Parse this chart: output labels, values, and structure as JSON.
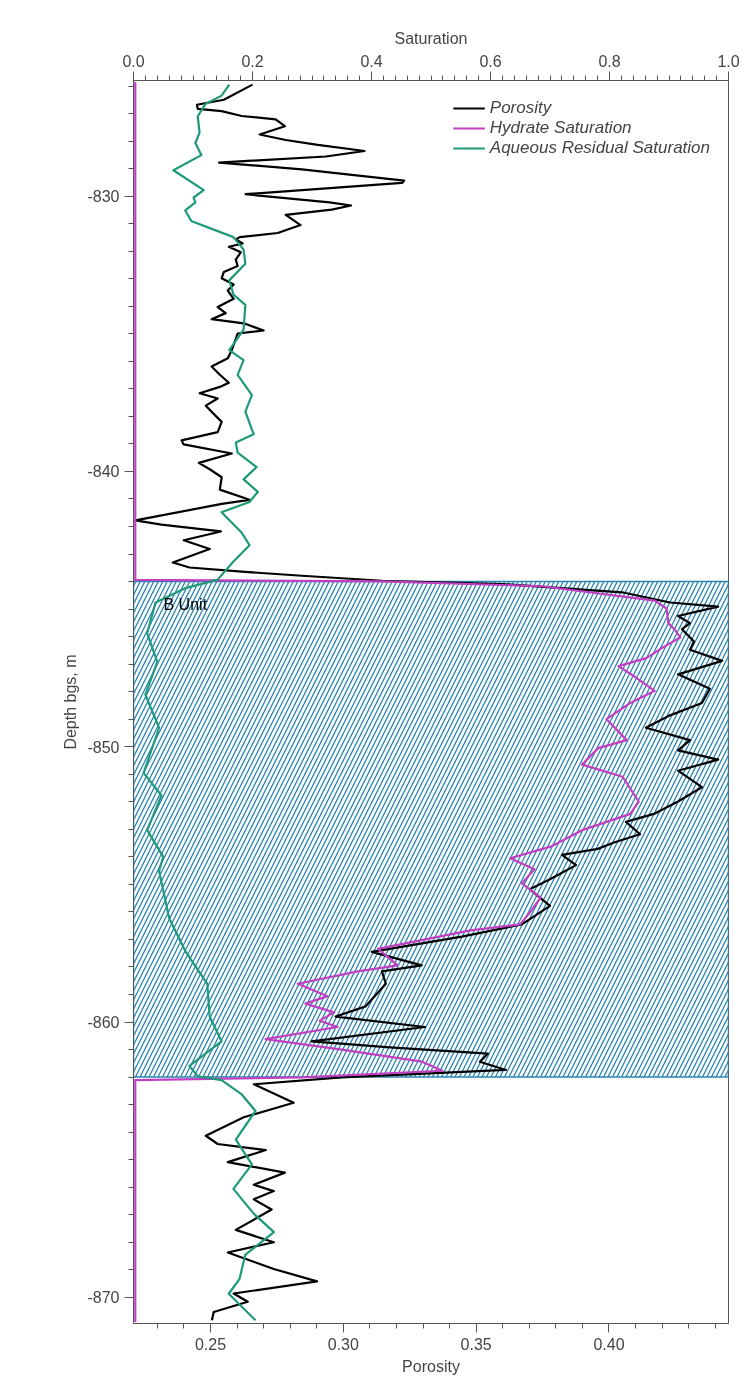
{
  "chart_data": {
    "type": "line",
    "orientation": "horizontal",
    "xlabel": "Porosity",
    "x2label": "Saturation",
    "ylabel": "Depth bgs, m",
    "xlim": [
      0.221,
      0.445
    ],
    "x2lim": [
      0,
      1
    ],
    "ylim": [
      -870.95,
      -825.8
    ],
    "xticks": [
      {
        "value": 0.23,
        "label": null
      },
      {
        "value": 0.24,
        "label": null
      },
      0.25,
      {
        "value": 0.26,
        "label": null
      },
      {
        "value": 0.27,
        "label": null
      },
      {
        "value": 0.28,
        "label": null
      },
      {
        "value": 0.29,
        "label": null
      },
      {
        "value": 0.3,
        "label": "0.30"
      },
      {
        "value": 0.31,
        "label": null
      },
      {
        "value": 0.32,
        "label": null
      },
      {
        "value": 0.33,
        "label": null
      },
      {
        "value": 0.34,
        "label": null
      },
      0.35,
      {
        "value": 0.36,
        "label": null
      },
      {
        "value": 0.37,
        "label": null
      },
      {
        "value": 0.38,
        "label": null
      },
      {
        "value": 0.39,
        "label": null
      },
      {
        "value": 0.4,
        "label": "0.40"
      },
      {
        "value": 0.41,
        "label": null
      },
      {
        "value": 0.42,
        "label": null
      },
      {
        "value": 0.43,
        "label": null
      },
      {
        "value": 0.44,
        "label": null
      }
    ],
    "x2ticks": [
      {
        "value": 0,
        "label": "0.0"
      },
      {
        "value": 0.02,
        "label": null
      },
      {
        "value": 0.04,
        "label": null
      },
      {
        "value": 0.06,
        "label": null
      },
      {
        "value": 0.08,
        "label": null
      },
      {
        "value": 0.1,
        "label": null
      },
      {
        "value": 0.12,
        "label": null
      },
      {
        "value": 0.14,
        "label": null
      },
      {
        "value": 0.16,
        "label": null
      },
      {
        "value": 0.18,
        "label": null
      },
      0.2,
      {
        "value": 0.22,
        "label": null
      },
      {
        "value": 0.24,
        "label": null
      },
      {
        "value": 0.26,
        "label": null
      },
      {
        "value": 0.28,
        "label": null
      },
      {
        "value": 0.3,
        "label": null
      },
      {
        "value": 0.32,
        "label": null
      },
      {
        "value": 0.34,
        "label": null
      },
      {
        "value": 0.36,
        "label": null
      },
      {
        "value": 0.38,
        "label": null
      },
      0.4,
      {
        "value": 0.42,
        "label": null
      },
      {
        "value": 0.44,
        "label": null
      },
      {
        "value": 0.46,
        "label": null
      },
      {
        "value": 0.48,
        "label": null
      },
      {
        "value": 0.5,
        "label": null
      },
      {
        "value": 0.52,
        "label": null
      },
      {
        "value": 0.54,
        "label": null
      },
      {
        "value": 0.56,
        "label": null
      },
      {
        "value": 0.58,
        "label": null
      },
      0.6,
      {
        "value": 0.62,
        "label": null
      },
      {
        "value": 0.64,
        "label": null
      },
      {
        "value": 0.66,
        "label": null
      },
      {
        "value": 0.68,
        "label": null
      },
      {
        "value": 0.7,
        "label": null
      },
      {
        "value": 0.72,
        "label": null
      },
      {
        "value": 0.74,
        "label": null
      },
      {
        "value": 0.76,
        "label": null
      },
      {
        "value": 0.78,
        "label": null
      },
      0.8,
      {
        "value": 0.82,
        "label": null
      },
      {
        "value": 0.84,
        "label": null
      },
      {
        "value": 0.86,
        "label": null
      },
      {
        "value": 0.88,
        "label": null
      },
      {
        "value": 0.9,
        "label": null
      },
      {
        "value": 0.92,
        "label": null
      },
      {
        "value": 0.94,
        "label": null
      },
      {
        "value": 0.96,
        "label": null
      },
      {
        "value": 0.98,
        "label": null
      },
      {
        "value": 1,
        "label": "1.0"
      }
    ],
    "yticks": [
      -870,
      {
        "value": -869,
        "label": null
      },
      {
        "value": -868,
        "label": null
      },
      {
        "value": -867,
        "label": null
      },
      {
        "value": -866,
        "label": null
      },
      {
        "value": -865,
        "label": null
      },
      {
        "value": -864,
        "label": null
      },
      {
        "value": -863,
        "label": null
      },
      {
        "value": -862,
        "label": null
      },
      {
        "value": -861,
        "label": null
      },
      -860,
      {
        "value": -859,
        "label": null
      },
      {
        "value": -858,
        "label": null
      },
      {
        "value": -857,
        "label": null
      },
      {
        "value": -856,
        "label": null
      },
      {
        "value": -855,
        "label": null
      },
      {
        "value": -854,
        "label": null
      },
      {
        "value": -853,
        "label": null
      },
      {
        "value": -852,
        "label": null
      },
      {
        "value": -851,
        "label": null
      },
      -850,
      {
        "value": -849,
        "label": null
      },
      {
        "value": -848,
        "label": null
      },
      {
        "value": -847,
        "label": null
      },
      {
        "value": -846,
        "label": null
      },
      {
        "value": -845,
        "label": null
      },
      {
        "value": -844,
        "label": null
      },
      {
        "value": -843,
        "label": null
      },
      {
        "value": -842,
        "label": null
      },
      {
        "value": -841,
        "label": null
      },
      -840,
      {
        "value": -839,
        "label": null
      },
      {
        "value": -838,
        "label": null
      },
      {
        "value": -837,
        "label": null
      },
      {
        "value": -836,
        "label": null
      },
      {
        "value": -835,
        "label": null
      },
      {
        "value": -834,
        "label": null
      },
      {
        "value": -833,
        "label": null
      },
      {
        "value": -832,
        "label": null
      },
      {
        "value": -831,
        "label": null
      },
      -830,
      {
        "value": -829,
        "label": null
      },
      {
        "value": -828,
        "label": null
      },
      {
        "value": -827,
        "label": null
      },
      {
        "value": -826,
        "label": null
      }
    ],
    "grid": false,
    "legend": "top right",
    "marker": "none",
    "line_style": "solid",
    "bands": [
      {
        "axis": "y",
        "from": -862.0,
        "to": -844.0,
        "label": "B Unit",
        "color": "#2a85b0"
      }
    ],
    "series": [
      {
        "name": "Porosity",
        "color": "#000000",
        "x": [
          -825.95,
          -826.5,
          -826.68,
          -826.83,
          -826.91,
          -827.09,
          -827.21,
          -827.46,
          -827.76,
          -827.96,
          -828.14,
          -828.36,
          -828.56,
          -828.78,
          -829.03,
          -829.44,
          -829.52,
          -829.93,
          -830.23,
          -830.34,
          -830.49,
          -830.68,
          -831.05,
          -831.34,
          -831.49,
          -831.57,
          -831.72,
          -831.84,
          -832.04,
          -832.31,
          -832.54,
          -832.76,
          -832.98,
          -833.21,
          -833.43,
          -833.73,
          -834.03,
          -834.25,
          -834.47,
          -834.62,
          -834.88,
          -834.99,
          -835.59,
          -835.89,
          -836.19,
          -836.49,
          -836.78,
          -836.93,
          -837.16,
          -837.35,
          -837.61,
          -837.83,
          -838.2,
          -838.57,
          -838.87,
          -839.02,
          -839.35,
          -839.69,
          -839.92,
          -840.21,
          -840.66,
          -841.03,
          -841.18,
          -841.78,
          -841.93,
          -842.18,
          -842.5,
          -842.82,
          -843.31,
          -843.49,
          -843.64,
          -843.79,
          -843.97,
          -844.09,
          -844.39,
          -844.76,
          -844.91,
          -845.25,
          -845.51,
          -845.73,
          -846.18,
          -846.48,
          -846.88,
          -847.37,
          -847.89,
          -848.41,
          -848.86,
          -849.31,
          -849.76,
          -850.13,
          -850.47,
          -850.87,
          -851.47,
          -851.99,
          -852.44,
          -852.73,
          -853.18,
          -853.48,
          -853.71,
          -853.93,
          -854.3,
          -854.81,
          -855.18,
          -855.78,
          -856.45,
          -856.9,
          -857.45,
          -857.94,
          -858.16,
          -858.61,
          -859.43,
          -859.8,
          -860.18,
          -860.7,
          -860.92,
          -861.15,
          -861.44,
          -861.74,
          -862.01,
          -862.26,
          -862.93,
          -863.46,
          -864.13,
          -864.43,
          -864.65,
          -865.09,
          -865.47,
          -865.91,
          -866.14,
          -866.44,
          -866.81,
          -867.55,
          -868.0,
          -868.37,
          -868.97,
          -869.42,
          -869.86,
          -870.16,
          -870.53,
          -870.83
        ],
        "values": [
          0.2658,
          0.255,
          0.2449,
          0.2452,
          0.2542,
          0.2617,
          0.2745,
          0.278,
          0.2685,
          0.2783,
          0.2904,
          0.308,
          0.2934,
          0.2532,
          0.2844,
          0.3229,
          0.3221,
          0.2632,
          0.2948,
          0.3029,
          0.2956,
          0.2783,
          0.2839,
          0.2753,
          0.261,
          0.2595,
          0.2621,
          0.2569,
          0.2614,
          0.2595,
          0.2602,
          0.255,
          0.2542,
          0.2587,
          0.2565,
          0.2587,
          0.2527,
          0.2557,
          0.2504,
          0.2625,
          0.27,
          0.2602,
          0.258,
          0.2565,
          0.2504,
          0.2535,
          0.2569,
          0.2535,
          0.2459,
          0.2527,
          0.2482,
          0.2504,
          0.2542,
          0.2527,
          0.2391,
          0.2399,
          0.258,
          0.2456,
          0.2497,
          0.2542,
          0.2535,
          0.2647,
          0.2542,
          0.2217,
          0.2315,
          0.2539,
          0.2399,
          0.2497,
          0.2358,
          0.2421,
          0.2617,
          0.2844,
          0.3145,
          0.3597,
          0.4049,
          0.423,
          0.4411,
          0.426,
          0.4305,
          0.4275,
          0.432,
          0.4305,
          0.4426,
          0.426,
          0.438,
          0.435,
          0.423,
          0.4139,
          0.4305,
          0.426,
          0.4411,
          0.426,
          0.435,
          0.426,
          0.4169,
          0.4064,
          0.4117,
          0.4019,
          0.3958,
          0.3823,
          0.3876,
          0.3778,
          0.3702,
          0.3778,
          0.3672,
          0.3446,
          0.3107,
          0.3295,
          0.3145,
          0.316,
          0.3084,
          0.2971,
          0.3307,
          0.2881,
          0.3175,
          0.3544,
          0.3514,
          0.3612,
          0.2994,
          0.2663,
          0.2813,
          0.2625,
          0.2482,
          0.2527,
          0.2708,
          0.2565,
          0.278,
          0.2663,
          0.2738,
          0.2663,
          0.273,
          0.2595,
          0.2738,
          0.2565,
          0.2738,
          0.2901,
          0.2587,
          0.264,
          0.2512,
          0.2505
        ]
      },
      {
        "name": "Hydrate Saturation",
        "color": "#c23fc2",
        "axis": "x2",
        "x": [
          -825.85,
          -843.94,
          -843.99,
          -844.17,
          -844.69,
          -844.98,
          -845.51,
          -845.73,
          -846.03,
          -846.4,
          -846.78,
          -847.07,
          -847.45,
          -847.97,
          -848.41,
          -849.0,
          -849.76,
          -850.05,
          -850.65,
          -851.09,
          -851.99,
          -852.44,
          -853.03,
          -853.63,
          -854.05,
          -854.45,
          -854.96,
          -855.48,
          -856.0,
          -856.45,
          -856.67,
          -857.34,
          -857.94,
          -858.16,
          -858.61,
          -859.06,
          -859.33,
          -859.65,
          -859.95,
          -860.18,
          -860.62,
          -861.0,
          -861.44,
          -861.77,
          -862.01,
          -862.11,
          -870.9
        ],
        "values": [
          0.003,
          0.003,
          0.418,
          0.687,
          0.876,
          0.896,
          0.899,
          0.909,
          0.919,
          0.889,
          0.862,
          0.815,
          0.842,
          0.876,
          0.835,
          0.795,
          0.829,
          0.781,
          0.754,
          0.822,
          0.849,
          0.835,
          0.754,
          0.701,
          0.633,
          0.674,
          0.653,
          0.684,
          0.667,
          0.65,
          0.566,
          0.411,
          0.444,
          0.377,
          0.276,
          0.326,
          0.289,
          0.337,
          0.313,
          0.343,
          0.222,
          0.35,
          0.485,
          0.519,
          0.283,
          0.003,
          0.003
        ]
      },
      {
        "name": "Aqueous Residual Saturation",
        "color": "#1f9a78",
        "axis": "x2",
        "x": [
          -825.95,
          -826.35,
          -826.65,
          -827.1,
          -827.69,
          -828.07,
          -828.51,
          -829.06,
          -829.78,
          -830.05,
          -830.23,
          -830.52,
          -830.9,
          -831.49,
          -831.94,
          -832.46,
          -833.06,
          -833.58,
          -833.95,
          -834.85,
          -835.59,
          -835.96,
          -836.49,
          -837.23,
          -837.83,
          -838.65,
          -838.95,
          -839.32,
          -839.84,
          -840.29,
          -840.74,
          -841.11,
          -841.48,
          -842.23,
          -842.68,
          -843.27,
          -843.94,
          -844.24,
          -844.76,
          -845.88,
          -846.92,
          -848.11,
          -849.31,
          -850.95,
          -851.77,
          -853.03,
          -854.0,
          -854.51,
          -856.23,
          -857.42,
          -858.61,
          -859.8,
          -860.7,
          -861.59,
          -861.97,
          -862.11,
          -862.63,
          -863.23,
          -864.27,
          -865.17,
          -866.06,
          -866.96,
          -867.63,
          -868.45,
          -869.34,
          -869.87,
          -870.83
        ],
        "values": [
          0.161,
          0.148,
          0.121,
          0.108,
          0.111,
          0.104,
          0.114,
          0.067,
          0.118,
          0.101,
          0.104,
          0.087,
          0.097,
          0.168,
          0.185,
          0.188,
          0.161,
          0.168,
          0.188,
          0.185,
          0.161,
          0.185,
          0.175,
          0.199,
          0.188,
          0.202,
          0.172,
          0.175,
          0.207,
          0.185,
          0.209,
          0.195,
          0.148,
          0.182,
          0.195,
          0.168,
          0.141,
          0.087,
          0.037,
          0.023,
          0.04,
          0.02,
          0.043,
          0.017,
          0.047,
          0.023,
          0.05,
          0.043,
          0.06,
          0.087,
          0.124,
          0.128,
          0.148,
          0.094,
          0.108,
          0.148,
          0.182,
          0.205,
          0.172,
          0.199,
          0.168,
          0.202,
          0.236,
          0.188,
          0.178,
          0.16,
          0.205
        ]
      }
    ]
  }
}
